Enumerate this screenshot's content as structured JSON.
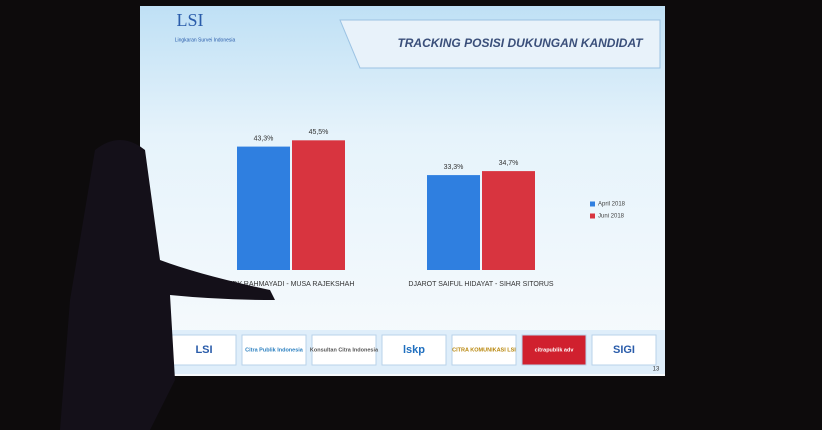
{
  "chart_data": {
    "type": "bar",
    "title": "TRACKING POSISI DUKUNGAN KANDIDAT",
    "categories": [
      "EDY RAHMAYADI - MUSA RAJEKSHAH",
      "DJAROT SAIFUL HIDAYAT - SIHAR SITORUS"
    ],
    "series": [
      {
        "name": "April 2018",
        "color": "#2f7fe0",
        "values": [
          43.3,
          33.3
        ],
        "value_labels": [
          "43,3%",
          "33,3%"
        ]
      },
      {
        "name": "Juni 2018",
        "color": "#d8343f",
        "values": [
          45.5,
          34.7
        ],
        "value_labels": [
          "45,5%",
          "34,7%"
        ]
      }
    ],
    "legend": "right"
  },
  "logo": {
    "mark": "LSI",
    "name": "Lingkaran Survei Indonesia"
  },
  "footer_logos": [
    "LSI",
    "Citra Publik Indonesia",
    "Konsultan Citra Indonesia",
    "lskp",
    "CITRA KOMUNIKASI LSI",
    "citrapublik adv",
    "SIGI"
  ],
  "page_number": "13"
}
